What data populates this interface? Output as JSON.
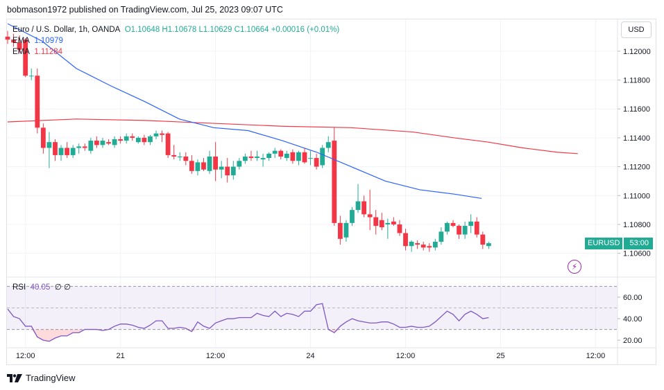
{
  "header": {
    "text": "bobmason1972 published on TradingView.com, Jul 25, 2023 09:07 UTC"
  },
  "legend": {
    "symbol": "Euro / U.S. Dollar, 1h, OANDA",
    "ohlc": "O1.10648  H1.10678  L1.10629  C1.10664  +0.00016 (+0.01%)",
    "ema1_label": "EMA",
    "ema1_value": "1.10979",
    "ema2_label": "EMA",
    "ema2_value": "1.11284"
  },
  "rsi_legend": {
    "label": "RSI",
    "value": "40.05",
    "extra": "∅ ∅"
  },
  "currency_button": "USD",
  "price_tag": {
    "symbol": "EURUSD",
    "countdown": "53:00"
  },
  "footer": {
    "brand": "TradingView"
  },
  "colors": {
    "up": "#22ab94",
    "down": "#f23645",
    "ema_fast": "#2962ff",
    "ema_slow": "#f23645",
    "rsi": "#7e57c2"
  },
  "chart_data": [
    {
      "type": "candlestick",
      "title": "Euro / U.S. Dollar, 1h, OANDA",
      "ylim": [
        1.1044,
        1.1222
      ],
      "y_ticks": [
        "1.12000",
        "1.11800",
        "1.11600",
        "1.11400",
        "1.11200",
        "1.11000",
        "1.10800",
        "1.10600"
      ],
      "x_ticks": [
        {
          "label": "12:00",
          "index": 3
        },
        {
          "label": "21",
          "index": 19
        },
        {
          "label": "12:00",
          "index": 35
        },
        {
          "label": "24",
          "index": 51
        },
        {
          "label": "12:00",
          "index": 67
        },
        {
          "label": "25",
          "index": 83
        },
        {
          "label": "12:00",
          "index": 99
        }
      ],
      "candles": [
        [
          1.121,
          1.1214,
          1.1205,
          1.1208
        ],
        [
          1.1208,
          1.1212,
          1.1203,
          1.1206
        ],
        [
          1.1206,
          1.1211,
          1.1199,
          1.1201
        ],
        [
          1.1208,
          1.1209,
          1.1182,
          1.1183
        ],
        [
          1.1183,
          1.1188,
          1.118,
          1.1183
        ],
        [
          1.1183,
          1.1188,
          1.1143,
          1.1147
        ],
        [
          1.1147,
          1.115,
          1.1129,
          1.1133
        ],
        [
          1.1133,
          1.1144,
          1.1119,
          1.1137
        ],
        [
          1.1137,
          1.1139,
          1.1124,
          1.1128
        ],
        [
          1.1128,
          1.1135,
          1.1124,
          1.1133
        ],
        [
          1.1133,
          1.1137,
          1.1126,
          1.1128
        ],
        [
          1.1128,
          1.1135,
          1.1126,
          1.1133
        ],
        [
          1.1133,
          1.1136,
          1.1129,
          1.1134
        ],
        [
          1.1134,
          1.1136,
          1.1131,
          1.1133
        ],
        [
          1.1131,
          1.114,
          1.1129,
          1.1138
        ],
        [
          1.1138,
          1.1141,
          1.1133,
          1.1135
        ],
        [
          1.1135,
          1.114,
          1.1133,
          1.1138
        ],
        [
          1.1137,
          1.1139,
          1.1135,
          1.1136
        ],
        [
          1.1135,
          1.1141,
          1.1133,
          1.1139
        ],
        [
          1.1139,
          1.1141,
          1.1136,
          1.1138
        ],
        [
          1.1138,
          1.1143,
          1.1136,
          1.1141
        ],
        [
          1.1141,
          1.1143,
          1.1138,
          1.114
        ],
        [
          1.1137,
          1.1141,
          1.1136,
          1.114
        ],
        [
          1.114,
          1.1142,
          1.1135,
          1.1137
        ],
        [
          1.1137,
          1.1142,
          1.1135,
          1.1141
        ],
        [
          1.1141,
          1.1145,
          1.1139,
          1.1143
        ],
        [
          1.1143,
          1.1145,
          1.1137,
          1.1142
        ],
        [
          1.1143,
          1.1144,
          1.1126,
          1.1128
        ],
        [
          1.1128,
          1.1135,
          1.1125,
          1.1127
        ],
        [
          1.1127,
          1.113,
          1.1124,
          1.1127
        ],
        [
          1.1127,
          1.113,
          1.1121,
          1.1124
        ],
        [
          1.1124,
          1.1128,
          1.1115,
          1.1117
        ],
        [
          1.1117,
          1.1125,
          1.1114,
          1.1123
        ],
        [
          1.1123,
          1.1126,
          1.1117,
          1.1118
        ],
        [
          1.1117,
          1.1131,
          1.1115,
          1.1127
        ],
        [
          1.1127,
          1.1137,
          1.111,
          1.1118
        ],
        [
          1.1118,
          1.1124,
          1.1112,
          1.112
        ],
        [
          1.112,
          1.1126,
          1.1109,
          1.1114
        ],
        [
          1.1114,
          1.1124,
          1.1111,
          1.112
        ],
        [
          1.112,
          1.1126,
          1.1118,
          1.1124
        ],
        [
          1.1124,
          1.1129,
          1.1122,
          1.1127
        ],
        [
          1.1127,
          1.1131,
          1.1124,
          1.1126
        ],
        [
          1.1126,
          1.1131,
          1.1124,
          1.1127
        ],
        [
          1.1125,
          1.1129,
          1.112,
          1.1126
        ],
        [
          1.1126,
          1.113,
          1.1124,
          1.1129
        ],
        [
          1.1129,
          1.1133,
          1.1126,
          1.1131
        ],
        [
          1.1131,
          1.1132,
          1.1125,
          1.1127
        ],
        [
          1.1126,
          1.1131,
          1.1124,
          1.1129
        ],
        [
          1.113,
          1.1132,
          1.1122,
          1.1124
        ],
        [
          1.1124,
          1.1131,
          1.1121,
          1.113
        ],
        [
          1.113,
          1.1133,
          1.1122,
          1.1123
        ],
        [
          1.1126,
          1.1131,
          1.1121,
          1.1126
        ],
        [
          1.1126,
          1.1129,
          1.1118,
          1.112
        ],
        [
          1.1121,
          1.1135,
          1.1119,
          1.1133
        ],
        [
          1.1133,
          1.1141,
          1.113,
          1.1137
        ],
        [
          1.1138,
          1.1147,
          1.1079,
          1.1081
        ],
        [
          1.1081,
          1.1086,
          1.1066,
          1.107
        ],
        [
          1.1071,
          1.1083,
          1.1068,
          1.1081
        ],
        [
          1.1081,
          1.1092,
          1.1079,
          1.109
        ],
        [
          1.109,
          1.1108,
          1.1088,
          1.1096
        ],
        [
          1.1096,
          1.11,
          1.1085,
          1.1087
        ],
        [
          1.1087,
          1.1104,
          1.1076,
          1.1085
        ],
        [
          1.1085,
          1.109,
          1.1073,
          1.1079
        ],
        [
          1.1083,
          1.1088,
          1.1076,
          1.1078
        ],
        [
          1.108,
          1.1084,
          1.107,
          1.1081
        ],
        [
          1.1082,
          1.1085,
          1.1079,
          1.108
        ],
        [
          1.108,
          1.1083,
          1.1072,
          1.1074
        ],
        [
          1.1074,
          1.1077,
          1.1062,
          1.1065
        ],
        [
          1.1065,
          1.1069,
          1.1061,
          1.1068
        ],
        [
          1.1067,
          1.1069,
          1.1063,
          1.1066
        ],
        [
          1.1066,
          1.1068,
          1.1062,
          1.1064
        ],
        [
          1.1065,
          1.1067,
          1.1061,
          1.1064
        ],
        [
          1.1064,
          1.107,
          1.1062,
          1.1068
        ],
        [
          1.1068,
          1.1078,
          1.1066,
          1.1075
        ],
        [
          1.1075,
          1.1082,
          1.1073,
          1.1081
        ],
        [
          1.1081,
          1.1083,
          1.1078,
          1.1079
        ],
        [
          1.1079,
          1.108,
          1.107,
          1.1073
        ],
        [
          1.1073,
          1.1082,
          1.107,
          1.1079
        ],
        [
          1.1079,
          1.1087,
          1.1074,
          1.1082
        ],
        [
          1.1082,
          1.1085,
          1.1071,
          1.1073
        ],
        [
          1.1073,
          1.1075,
          1.1063,
          1.1066
        ],
        [
          1.1065,
          1.1068,
          1.1063,
          1.1067
        ]
      ],
      "ema_fast": [
        [
          0,
          1.1219
        ],
        [
          10,
          1.1207
        ],
        [
          20,
          1.1188
        ],
        [
          30,
          1.1176
        ],
        [
          40,
          1.1165
        ],
        [
          50,
          1.1153
        ],
        [
          60,
          1.1147
        ],
        [
          70,
          1.1145
        ],
        [
          80,
          1.1138
        ],
        [
          90,
          1.113
        ],
        [
          100,
          1.112
        ],
        [
          110,
          1.111
        ],
        [
          120,
          1.1104
        ],
        [
          130,
          1.1101
        ],
        [
          138,
          1.1098
        ]
      ],
      "ema_slow": [
        [
          0,
          1.1151
        ],
        [
          20,
          1.1153
        ],
        [
          40,
          1.1152
        ],
        [
          60,
          1.115
        ],
        [
          80,
          1.1148
        ],
        [
          100,
          1.1147
        ],
        [
          118,
          1.1144
        ],
        [
          130,
          1.114
        ],
        [
          140,
          1.1137
        ],
        [
          150,
          1.1133
        ],
        [
          160,
          1.113
        ],
        [
          166,
          1.1129
        ]
      ]
    },
    {
      "type": "line",
      "title": "RSI",
      "value_label": "40.05",
      "ylim": [
        13,
        78
      ],
      "y_ticks": [
        "60.00",
        "40.00",
        "20.00"
      ],
      "bands": [
        70,
        50,
        30
      ],
      "values": [
        49,
        42,
        40,
        33,
        33,
        23,
        20,
        19,
        22,
        24,
        24,
        27,
        27,
        30,
        30,
        30,
        29,
        30,
        33,
        35,
        35,
        34,
        32,
        31,
        34,
        38,
        38,
        31,
        31,
        32,
        31,
        28,
        37,
        33,
        31,
        36,
        38,
        40,
        40,
        41,
        41,
        41,
        45,
        43,
        42,
        47,
        42,
        45,
        44,
        42,
        47,
        47,
        53,
        54,
        30,
        27,
        33,
        37,
        40,
        38,
        37,
        36,
        36,
        37,
        37,
        35,
        32,
        32,
        33,
        32,
        32,
        33,
        37,
        42,
        47,
        44,
        38,
        44,
        47,
        44,
        40,
        41
      ]
    }
  ]
}
